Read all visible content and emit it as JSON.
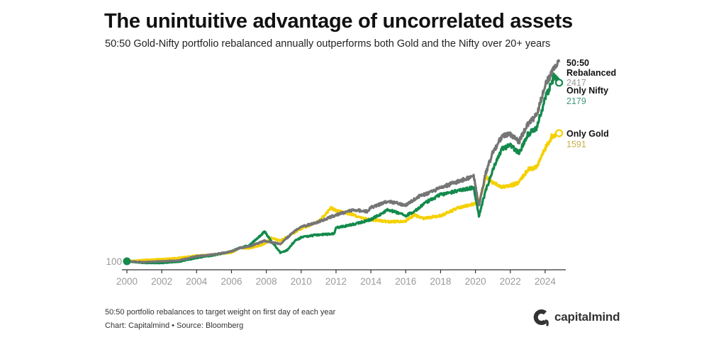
{
  "header": {
    "title": "The unintuitive advantage of uncorrelated assets",
    "subtitle": "50:50 Gold-Nifty portfolio rebalanced annually outperforms both Gold and the Nifty over 20+ years"
  },
  "footer": {
    "note": "50:50 portfolio rebalances to target weight on first day of each year",
    "source": "Chart: Capitalmind • Source: Bloomberg",
    "logo_text": "capitalmind"
  },
  "chart_data": {
    "type": "line",
    "title": "The unintuitive advantage of uncorrelated assets",
    "xlabel": "",
    "ylabel": "",
    "xlim": [
      2000,
      2025
    ],
    "ylim": [
      100,
      2500
    ],
    "grid": false,
    "legend": "direct-labels-right",
    "x_ticks": [
      "2000",
      "2002",
      "2004",
      "2006",
      "2008",
      "2010",
      "2012",
      "2014",
      "2016",
      "2018",
      "2020",
      "2022",
      "2024"
    ],
    "start_label": "100",
    "series": [
      {
        "name": "Only Gold",
        "color": "#f5d000",
        "end_label": "Only Gold",
        "end_value": "1591",
        "x": [
          2000,
          2001,
          2002,
          2003,
          2004,
          2005,
          2006,
          2006.5,
          2007,
          2007.9,
          2008.3,
          2008.8,
          2009.5,
          2010,
          2011,
          2011.7,
          2012,
          2013,
          2013.5,
          2014,
          2015,
          2016,
          2016.5,
          2017,
          2018,
          2019,
          2019.8,
          2020.2,
          2020.6,
          2021,
          2021.5,
          2022,
          2022.5,
          2023,
          2023.5,
          2024,
          2024.4,
          2024.8
        ],
        "y": [
          100,
          115,
          125,
          140,
          165,
          180,
          200,
          260,
          250,
          300,
          370,
          340,
          420,
          480,
          560,
          720,
          690,
          640,
          600,
          585,
          560,
          570,
          640,
          600,
          630,
          720,
          760,
          790,
          1080,
          1015,
          970,
          980,
          1020,
          1165,
          1200,
          1410,
          1560,
          1591
        ]
      },
      {
        "name": "Only Nifty",
        "color": "#138a4c",
        "end_label": "Only Nifty",
        "end_value": "2179",
        "x": [
          2000,
          2001,
          2002,
          2003,
          2004,
          2005,
          2006,
          2006.5,
          2007,
          2007.9,
          2008.3,
          2008.8,
          2009.2,
          2009.6,
          2010,
          2011,
          2011.9,
          2012,
          2013,
          2014,
          2015,
          2016,
          2016.8,
          2017,
          2018,
          2019,
          2019.9,
          2020.2,
          2020.6,
          2021,
          2021.5,
          2022,
          2022.5,
          2023,
          2023.5,
          2024,
          2024.5,
          2024.8
        ],
        "y": [
          100,
          80,
          80,
          95,
          140,
          170,
          215,
          260,
          280,
          445,
          330,
          200,
          230,
          330,
          380,
          410,
          420,
          490,
          530,
          585,
          700,
          630,
          720,
          770,
          875,
          920,
          960,
          630,
          930,
          1165,
          1400,
          1450,
          1360,
          1575,
          1650,
          1990,
          2250,
          2179
        ]
      },
      {
        "name": "50:50 Rebalanced",
        "color": "#757575",
        "end_label": "50:50 Rebalanced",
        "end_value": "2417",
        "x": [
          2000,
          2001,
          2002,
          2003,
          2004,
          2005,
          2006,
          2006.5,
          2007,
          2007.9,
          2008.3,
          2008.8,
          2009.5,
          2010,
          2011,
          2012,
          2013,
          2013.8,
          2014,
          2015,
          2016,
          2016.8,
          2017,
          2018,
          2019,
          2019.9,
          2020.2,
          2020.6,
          2021,
          2021.5,
          2022,
          2022.5,
          2023,
          2023.5,
          2024,
          2024.5,
          2024.8
        ],
        "y": [
          100,
          90,
          100,
          110,
          158,
          180,
          215,
          255,
          270,
          340,
          320,
          300,
          430,
          500,
          560,
          640,
          700,
          680,
          725,
          800,
          750,
          860,
          870,
          955,
          1030,
          1090,
          750,
          1130,
          1370,
          1550,
          1575,
          1490,
          1700,
          1800,
          2150,
          2350,
          2417
        ]
      }
    ]
  }
}
